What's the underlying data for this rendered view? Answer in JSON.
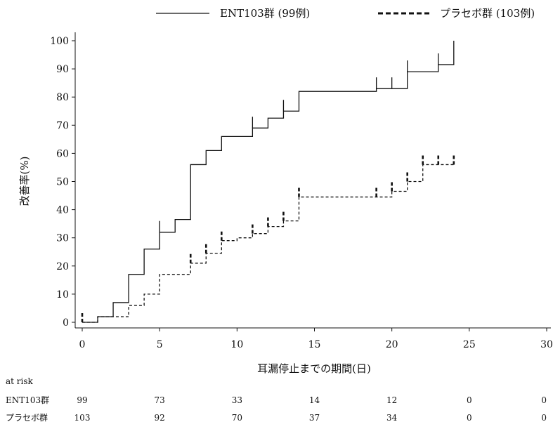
{
  "chart_data": {
    "type": "line",
    "xlabel": "耳漏停止までの期間(日)",
    "ylabel": "改善率(%)",
    "xlim": [
      0,
      30
    ],
    "ylim": [
      0,
      100
    ],
    "xticks": [
      0,
      5,
      10,
      15,
      20,
      25,
      30
    ],
    "yticks": [
      0,
      10,
      20,
      30,
      40,
      50,
      60,
      70,
      80,
      90,
      100
    ],
    "grid": false,
    "legend_position": "top",
    "series": [
      {
        "name": "ENT103群 (99例)",
        "style": "solid",
        "color": "#111111",
        "x": [
          0,
          1,
          2,
          3,
          4,
          5,
          6,
          7,
          8,
          9,
          11,
          12,
          13,
          14,
          19,
          21,
          23,
          24
        ],
        "y": [
          0,
          2,
          7,
          17,
          26,
          32,
          36.5,
          56,
          61,
          66,
          69,
          72.5,
          75,
          82,
          83,
          89,
          91.5,
          100
        ],
        "censored": [
          [
            5,
            32
          ],
          [
            11,
            69
          ],
          [
            13,
            75
          ],
          [
            19,
            83
          ],
          [
            20,
            83
          ],
          [
            21,
            89
          ],
          [
            23,
            91.5
          ]
        ]
      },
      {
        "name": "プラセボ群 (103例)",
        "style": "dashed",
        "color": "#111111",
        "x": [
          0,
          1,
          3,
          4,
          5,
          7,
          8,
          9,
          10,
          11,
          12,
          13,
          14,
          20,
          21,
          22,
          24
        ],
        "y": [
          0,
          2,
          6,
          10,
          17,
          21,
          24.5,
          29,
          30,
          31.5,
          34,
          36,
          44.5,
          46.5,
          50,
          56,
          56
        ],
        "censored": [
          [
            0,
            0
          ],
          [
            7,
            21
          ],
          [
            8,
            24.5
          ],
          [
            9,
            29
          ],
          [
            11,
            31.5
          ],
          [
            12,
            34
          ],
          [
            13,
            36
          ],
          [
            14,
            44.5
          ],
          [
            19,
            44.5
          ],
          [
            20,
            46.5
          ],
          [
            21,
            50
          ],
          [
            22,
            56
          ],
          [
            23,
            56
          ],
          [
            24,
            56
          ]
        ]
      }
    ]
  },
  "at_risk": {
    "title": "at risk",
    "days": [
      0,
      5,
      10,
      15,
      20,
      25,
      30
    ],
    "rows": [
      {
        "label": "ENT103群",
        "values": [
          "99",
          "73",
          "33",
          "14",
          "12",
          "0",
          "0"
        ]
      },
      {
        "label": "プラセボ群",
        "values": [
          "103",
          "92",
          "70",
          "37",
          "34",
          "0",
          "0"
        ]
      }
    ]
  }
}
